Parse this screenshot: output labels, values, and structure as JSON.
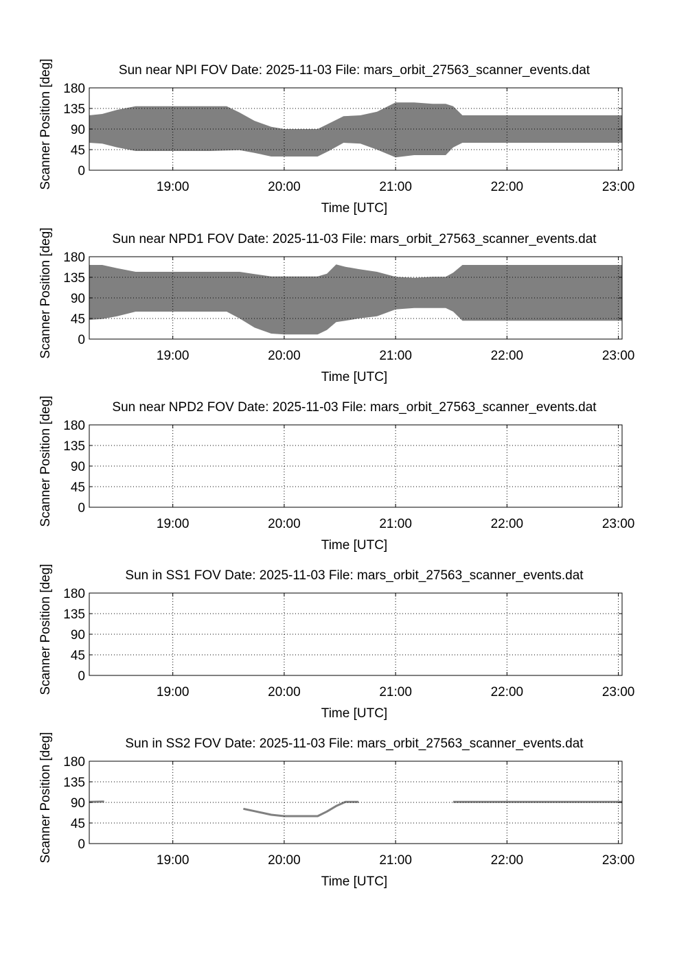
{
  "chart_data": [
    {
      "type": "area",
      "title": "Sun near NPI FOV   Date: 2025-11-03   File: mars_orbit_27563_scanner_events.dat",
      "xlabel": "Time [UTC]",
      "ylabel": "Scanner Position [deg]",
      "x_ticks": [
        "19:00",
        "20:00",
        "21:00",
        "22:00",
        "23:00"
      ],
      "y_ticks": [
        "0",
        "45",
        "90",
        "135",
        "180"
      ],
      "xlim": [
        "18:15",
        "23:02"
      ],
      "ylim": [
        0,
        180
      ],
      "grid": true,
      "fill_color": "#808080",
      "series": [
        {
          "x": [
            "18:15",
            "18:22",
            "18:30",
            "18:40",
            "19:00",
            "19:20",
            "19:29",
            "19:36",
            "19:44",
            "19:53",
            "20:00",
            "20:10",
            "20:18",
            "20:24",
            "20:32",
            "20:41",
            "20:50",
            "21:00",
            "21:10",
            "21:20",
            "21:27",
            "21:31",
            "21:36",
            "21:45",
            "22:00",
            "22:30",
            "23:02"
          ],
          "upper": [
            120,
            123,
            132,
            140,
            140,
            140,
            140,
            126,
            108,
            95,
            90,
            90,
            90,
            102,
            118,
            120,
            128,
            148,
            148,
            145,
            145,
            140,
            120,
            120,
            120,
            120,
            120
          ],
          "lower": [
            60,
            58,
            50,
            42,
            42,
            42,
            43,
            44,
            38,
            30,
            30,
            30,
            30,
            42,
            60,
            58,
            45,
            28,
            33,
            33,
            33,
            50,
            60,
            60,
            60,
            60,
            60
          ]
        }
      ]
    },
    {
      "type": "area",
      "title": "Sun near NPD1 FOV   Date: 2025-11-03   File: mars_orbit_27563_scanner_events.dat",
      "xlabel": "Time [UTC]",
      "ylabel": "Scanner Position [deg]",
      "x_ticks": [
        "19:00",
        "20:00",
        "21:00",
        "22:00",
        "23:00"
      ],
      "y_ticks": [
        "0",
        "45",
        "90",
        "135",
        "180"
      ],
      "xlim": [
        "18:15",
        "23:02"
      ],
      "ylim": [
        0,
        180
      ],
      "grid": true,
      "fill_color": "#808080",
      "series": [
        {
          "x": [
            "18:15",
            "18:22",
            "18:30",
            "18:40",
            "19:00",
            "19:20",
            "19:29",
            "19:36",
            "19:44",
            "19:53",
            "20:00",
            "20:10",
            "20:18",
            "20:23",
            "20:28",
            "20:33",
            "20:40",
            "20:50",
            "21:00",
            "21:10",
            "21:20",
            "21:27",
            "21:31",
            "21:36",
            "21:45",
            "22:00",
            "22:30",
            "23:02"
          ],
          "upper": [
            162,
            162,
            155,
            147,
            147,
            147,
            147,
            147,
            142,
            137,
            137,
            137,
            137,
            143,
            163,
            158,
            153,
            147,
            136,
            134,
            136,
            136,
            145,
            162,
            162,
            162,
            162,
            162
          ],
          "lower": [
            42,
            44,
            50,
            60,
            60,
            60,
            60,
            45,
            25,
            12,
            10,
            10,
            10,
            20,
            37,
            40,
            45,
            50,
            65,
            68,
            68,
            68,
            60,
            40,
            40,
            40,
            40,
            40
          ]
        }
      ]
    },
    {
      "type": "area",
      "title": "Sun near NPD2 FOV   Date: 2025-11-03   File: mars_orbit_27563_scanner_events.dat",
      "xlabel": "Time [UTC]",
      "ylabel": "Scanner Position [deg]",
      "x_ticks": [
        "19:00",
        "20:00",
        "21:00",
        "22:00",
        "23:00"
      ],
      "y_ticks": [
        "0",
        "45",
        "90",
        "135",
        "180"
      ],
      "xlim": [
        "18:15",
        "23:02"
      ],
      "ylim": [
        0,
        180
      ],
      "grid": true,
      "fill_color": "#808080",
      "series": []
    },
    {
      "type": "line",
      "title": "Sun in SS1 FOV   Date: 2025-11-03   File: mars_orbit_27563_scanner_events.dat",
      "xlabel": "Time [UTC]",
      "ylabel": "Scanner Position [deg]",
      "x_ticks": [
        "19:00",
        "20:00",
        "21:00",
        "22:00",
        "23:00"
      ],
      "y_ticks": [
        "0",
        "45",
        "90",
        "135",
        "180"
      ],
      "xlim": [
        "18:15",
        "23:02"
      ],
      "ylim": [
        0,
        180
      ],
      "grid": true,
      "line_color": "#808080",
      "series": []
    },
    {
      "type": "line",
      "title": "Sun in SS2 FOV   Date: 2025-11-03   File: mars_orbit_27563_scanner_events.dat",
      "xlabel": "Time [UTC]",
      "ylabel": "Scanner Position [deg]",
      "x_ticks": [
        "19:00",
        "20:00",
        "21:00",
        "22:00",
        "23:00"
      ],
      "y_ticks": [
        "0",
        "45",
        "90",
        "135",
        "180"
      ],
      "xlim": [
        "18:15",
        "23:02"
      ],
      "ylim": [
        0,
        180
      ],
      "grid": true,
      "line_color": "#808080",
      "series": [
        {
          "x": [
            "18:15",
            "18:23"
          ],
          "y": [
            91,
            92
          ]
        },
        {
          "x": [
            "19:38",
            "19:45",
            "19:53",
            "20:00",
            "20:10",
            "20:18",
            "20:23",
            "20:28",
            "20:33",
            "20:40"
          ],
          "y": [
            76,
            70,
            63,
            60,
            60,
            60,
            70,
            82,
            91,
            91
          ]
        },
        {
          "x": [
            "21:31",
            "22:00",
            "22:30",
            "23:02"
          ],
          "y": [
            91,
            91,
            91,
            91
          ]
        }
      ]
    }
  ]
}
